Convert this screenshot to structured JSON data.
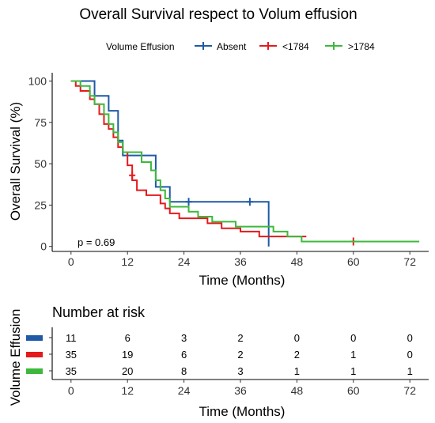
{
  "chart_data": {
    "type": "line",
    "title": "Overall Survival respect to Volum effusion",
    "xlabel": "Time (Months)",
    "ylabel": "Overall Survival (%)",
    "xlim": [
      -4,
      76
    ],
    "ylim": [
      -3,
      105
    ],
    "xticks": [
      0,
      12,
      24,
      36,
      48,
      60,
      72
    ],
    "yticks": [
      0,
      25,
      50,
      75,
      100
    ],
    "pvalue": "p = 0.69",
    "legend": {
      "title": "Volume Effusion",
      "position": "top"
    },
    "series": [
      {
        "name": "Absent",
        "color": "#1f5aa6",
        "steps": [
          [
            0,
            100
          ],
          [
            5,
            91
          ],
          [
            8,
            82
          ],
          [
            10,
            64
          ],
          [
            11,
            55
          ],
          [
            18,
            36
          ],
          [
            21,
            27
          ],
          [
            42,
            0
          ]
        ],
        "end": 42,
        "censors": [
          [
            25,
            27
          ],
          [
            38,
            27
          ]
        ]
      },
      {
        "name": "<1784",
        "color": "#e41a1c",
        "steps": [
          [
            0,
            100
          ],
          [
            1,
            97
          ],
          [
            2,
            94
          ],
          [
            4,
            89
          ],
          [
            5,
            86
          ],
          [
            6,
            80
          ],
          [
            7,
            74
          ],
          [
            8,
            71
          ],
          [
            9,
            66
          ],
          [
            10,
            60
          ],
          [
            11,
            57
          ],
          [
            12,
            49
          ],
          [
            13,
            40
          ],
          [
            14,
            34
          ],
          [
            16,
            31
          ],
          [
            19,
            26
          ],
          [
            20,
            23
          ],
          [
            21,
            20
          ],
          [
            23,
            17
          ],
          [
            29,
            14
          ],
          [
            32,
            11
          ],
          [
            36,
            9
          ],
          [
            40,
            6
          ]
        ],
        "end": 50,
        "censors": [
          [
            13,
            43
          ],
          [
            60,
            3
          ]
        ]
      },
      {
        "name": ">1784",
        "color": "#3cb93c",
        "steps": [
          [
            0,
            100
          ],
          [
            2,
            97
          ],
          [
            4,
            91
          ],
          [
            5,
            86
          ],
          [
            7,
            80
          ],
          [
            8,
            74
          ],
          [
            9,
            69
          ],
          [
            10,
            63
          ],
          [
            11,
            57
          ],
          [
            15,
            51
          ],
          [
            17,
            46
          ],
          [
            18,
            40
          ],
          [
            19,
            34
          ],
          [
            20,
            29
          ],
          [
            21,
            24
          ],
          [
            25,
            21
          ],
          [
            27,
            18
          ],
          [
            30,
            15
          ],
          [
            35,
            12
          ],
          [
            43,
            9
          ],
          [
            46,
            6
          ],
          [
            49,
            3
          ]
        ],
        "end": 74,
        "censors": []
      }
    ],
    "risk_table": {
      "title": "Number at risk",
      "ylabel": "Volume Effusion",
      "xlabel": "Time (Months)",
      "times": [
        0,
        12,
        24,
        36,
        48,
        60,
        72
      ],
      "rows": [
        {
          "name": "Absent",
          "color": "#1f5aa6",
          "counts": [
            11,
            6,
            3,
            2,
            0,
            0,
            0
          ]
        },
        {
          "name": "<1784",
          "color": "#e41a1c",
          "counts": [
            35,
            19,
            6,
            2,
            2,
            1,
            0
          ]
        },
        {
          "name": ">1784",
          "color": "#3cb93c",
          "counts": [
            35,
            20,
            8,
            3,
            1,
            1,
            1
          ]
        }
      ]
    }
  }
}
